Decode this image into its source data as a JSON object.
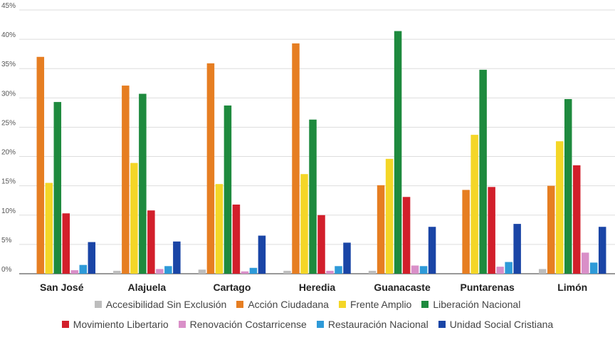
{
  "chart_data": {
    "type": "bar",
    "categories": [
      "San José",
      "Alajuela",
      "Cartago",
      "Heredia",
      "Guanacaste",
      "Puntarenas",
      "Limón"
    ],
    "y_ticks": [
      "0%",
      "5%",
      "10%",
      "15%",
      "20%",
      "25%",
      "30%",
      "35%",
      "40%",
      "45%"
    ],
    "ylim": [
      0,
      45
    ],
    "grid": true,
    "legend_position": "bottom",
    "series": [
      {
        "name": "Accesibilidad Sin Exclusión",
        "color": "#bdbdbd",
        "values": [
          0.0,
          0.5,
          0.7,
          0.5,
          0.5,
          0.0,
          0.8
        ]
      },
      {
        "name": "Acción Ciudadana",
        "color": "#e67e22",
        "values": [
          37.0,
          32.1,
          35.9,
          39.3,
          15.1,
          14.3,
          15.0
        ]
      },
      {
        "name": "Frente Amplio",
        "color": "#f4d627",
        "values": [
          15.5,
          18.9,
          15.3,
          17.0,
          19.6,
          23.7,
          22.6
        ]
      },
      {
        "name": "Liberación Nacional",
        "color": "#1e8a3e",
        "values": [
          29.3,
          30.7,
          28.7,
          26.3,
          41.4,
          34.8,
          29.8
        ]
      },
      {
        "name": "Movimiento Libertario",
        "color": "#d21f2b",
        "values": [
          10.3,
          10.8,
          11.8,
          10.0,
          13.1,
          14.8,
          18.5
        ]
      },
      {
        "name": "Renovación Costarricense",
        "color": "#d98fc8",
        "values": [
          0.6,
          0.8,
          0.4,
          0.5,
          1.4,
          1.2,
          3.6
        ]
      },
      {
        "name": "Restauración Nacional",
        "color": "#2e9ad8",
        "values": [
          1.5,
          1.3,
          1.0,
          1.3,
          1.3,
          2.0,
          1.9
        ]
      },
      {
        "name": "Unidad Social Cristiana",
        "color": "#1a45a6",
        "values": [
          5.4,
          5.5,
          6.5,
          5.3,
          8.0,
          8.5,
          8.0
        ]
      }
    ]
  }
}
